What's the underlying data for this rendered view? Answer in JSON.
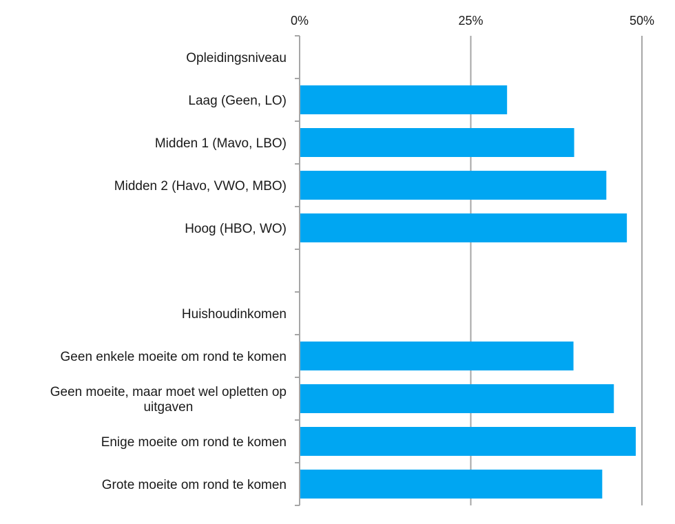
{
  "chart_data": {
    "type": "bar",
    "orientation": "horizontal",
    "title": "",
    "xlabel": "",
    "ylabel": "",
    "xlim": [
      0,
      50
    ],
    "x_ticks": [
      {
        "value": 0,
        "label": "0%"
      },
      {
        "value": 25,
        "label": "25%"
      },
      {
        "value": 50,
        "label": "50%"
      }
    ],
    "grid": true,
    "axis_position": "top",
    "bar_color": "#00A6F2",
    "categories": [
      {
        "label": "Opleidingsniveau",
        "value": null
      },
      {
        "label": "Laag (Geen, LO)",
        "value": 30.3
      },
      {
        "label": "Midden 1 (Mavo, LBO)",
        "value": 40.1
      },
      {
        "label": "Midden 2 (Havo, VWO, MBO)",
        "value": 44.8
      },
      {
        "label": "Hoog (HBO, WO)",
        "value": 47.8
      },
      {
        "label": "",
        "value": null
      },
      {
        "label": "Huishoudinkomen",
        "value": null
      },
      {
        "label": "Geen enkele moeite om rond te komen",
        "value": 40.0
      },
      {
        "label": "Geen moeite, maar moet wel opletten op uitgaven",
        "value": 45.9
      },
      {
        "label": "Enige moeite om rond te komen",
        "value": 49.1
      },
      {
        "label": "Grote moeite om rond te komen",
        "value": 44.2
      }
    ]
  }
}
